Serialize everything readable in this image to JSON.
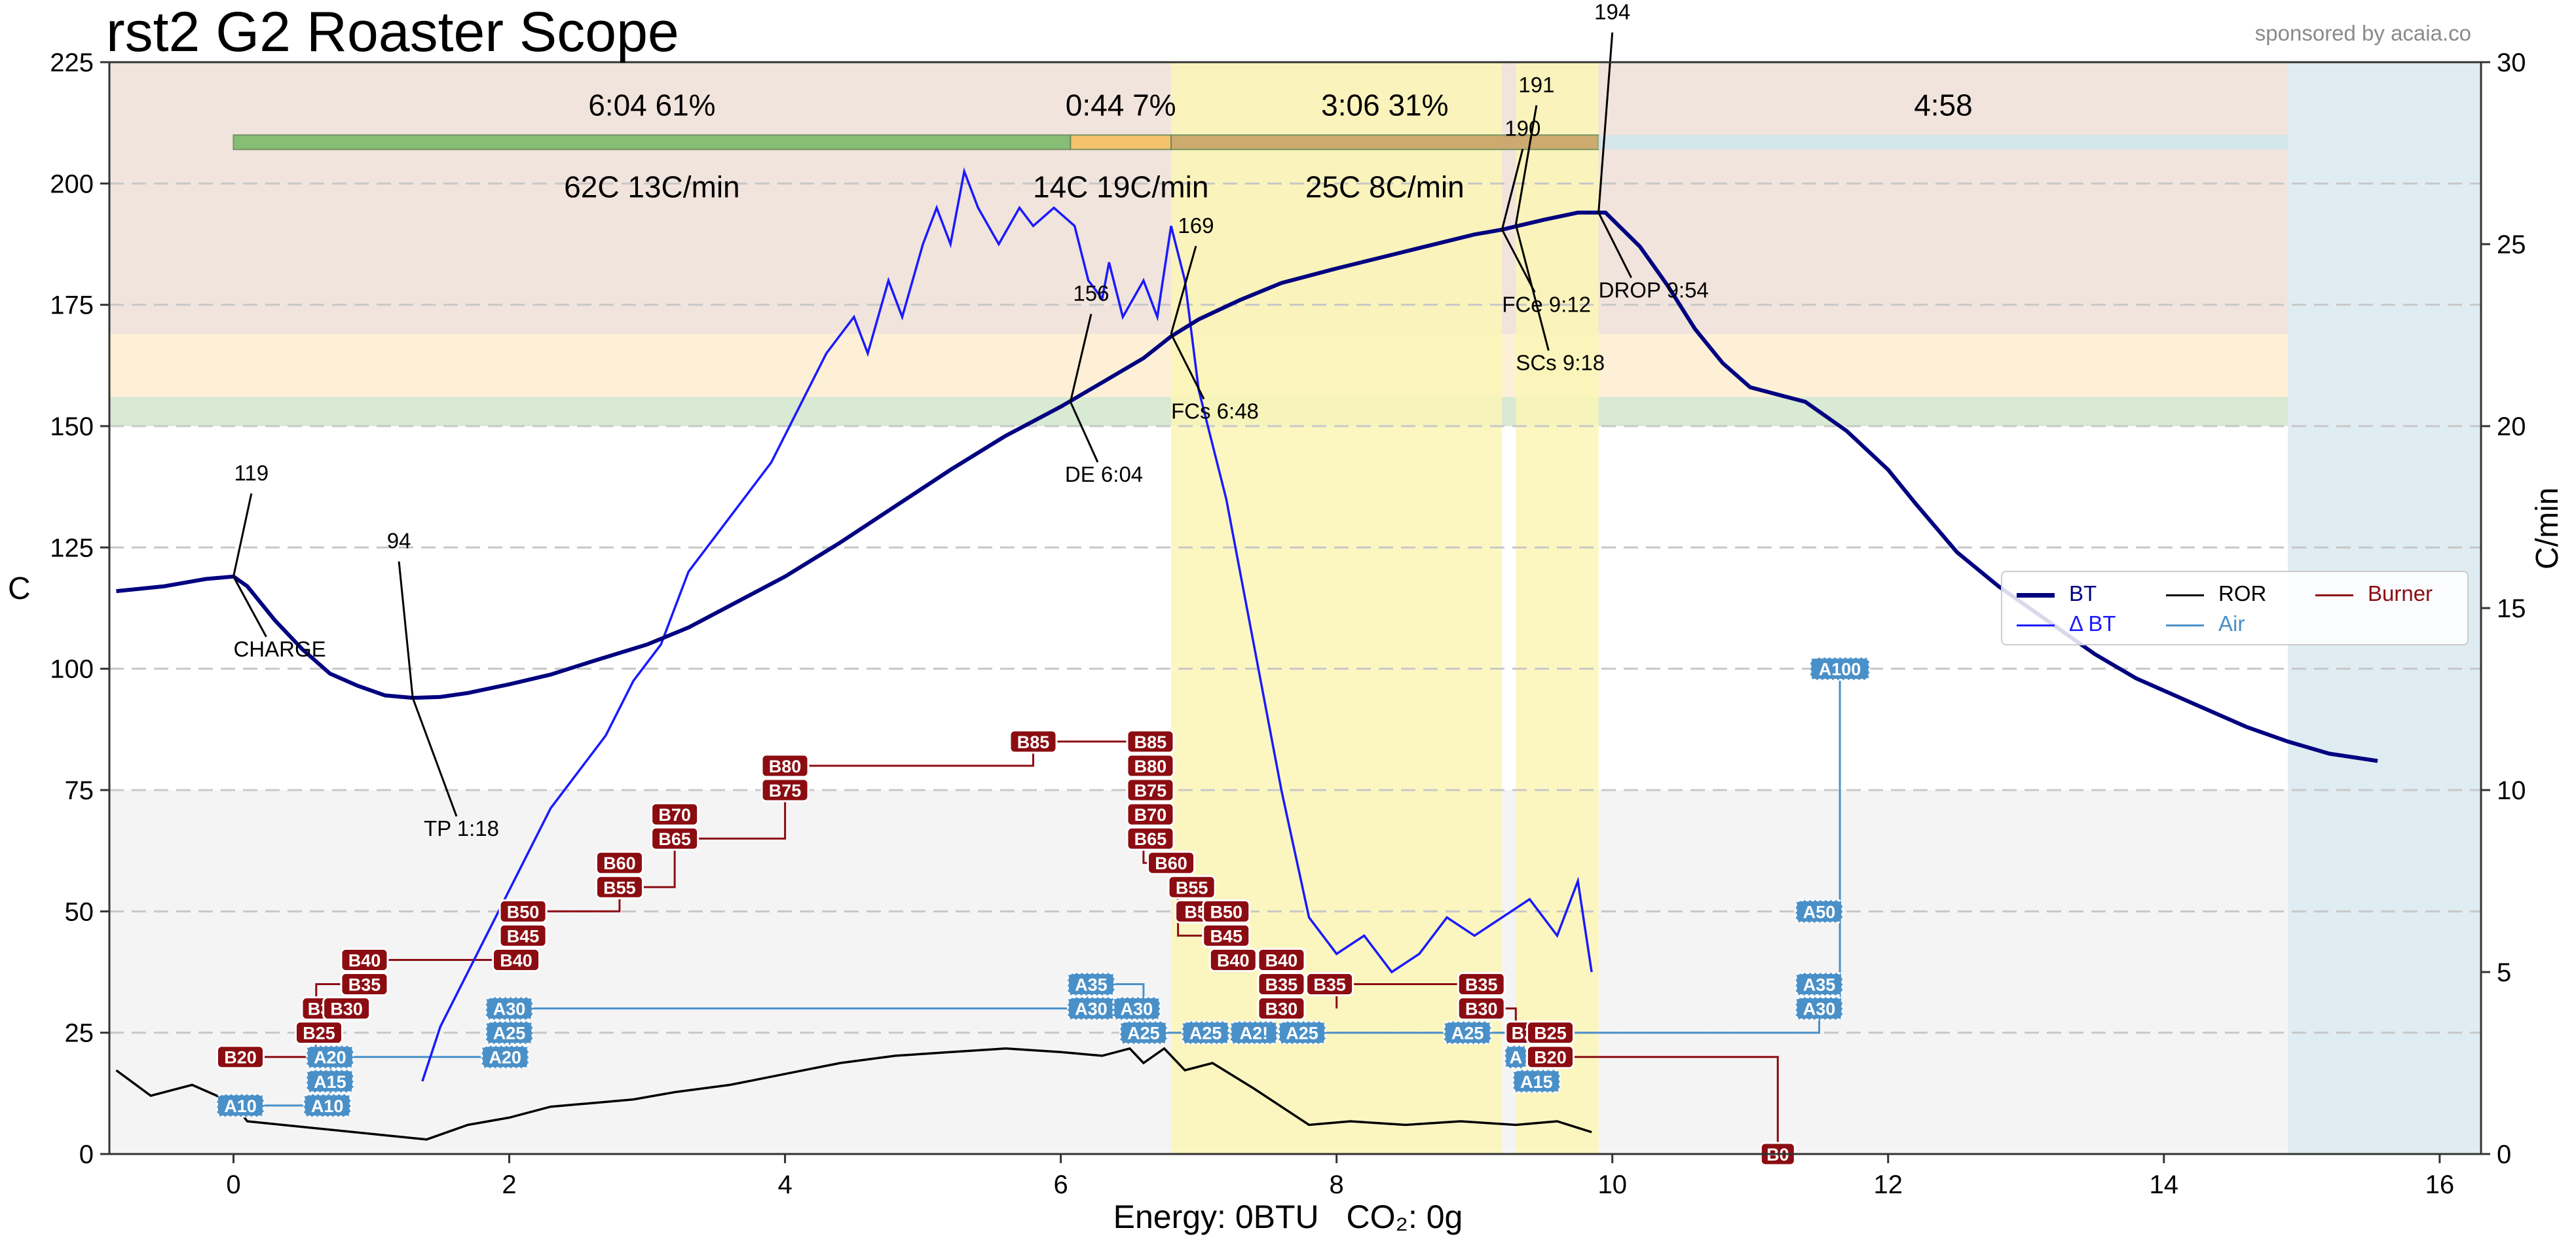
{
  "title": "rst2 G2 Roaster Scope",
  "sponsor": "sponsored by acaia.co",
  "footer": {
    "energy": "Energy: 0BTU",
    "co2": "CO₂: 0g"
  },
  "chart_data": {
    "type": "line",
    "xlim": [
      -0.9,
      16.3
    ],
    "ylim_left": [
      0,
      225
    ],
    "ylim_right": [
      0,
      30
    ],
    "ylabel_left": "C",
    "ylabel_right": "C/min",
    "x_ticks": [
      0,
      2,
      4,
      6,
      8,
      10,
      12,
      14,
      16
    ],
    "y_ticks_left": [
      0,
      25,
      50,
      75,
      100,
      125,
      150,
      175,
      200,
      225
    ],
    "y_ticks_right": [
      0,
      5,
      10,
      15,
      20,
      25,
      30
    ],
    "grid": "horizontal dashed",
    "legend": {
      "placement": "right",
      "entries": [
        {
          "label": "BT",
          "color": "#000080"
        },
        {
          "label": "ROR",
          "color": "#000000"
        },
        {
          "label": "Burner",
          "color": "#8b0d12"
        },
        {
          "label": "Δ BT",
          "color": "#1a1aff"
        },
        {
          "label": "Air",
          "color": "#4a90c8"
        }
      ]
    },
    "temp_bands": [
      {
        "from": 169,
        "to": 225,
        "color": "#f1e4dc"
      },
      {
        "from": 156,
        "to": 169,
        "color": "#fdf0d6"
      },
      {
        "from": 150,
        "to": 156,
        "color": "#d8e9d4"
      }
    ],
    "stripe_bands": [
      [
        0,
        10
      ],
      [
        20,
        30
      ],
      [
        40,
        50
      ],
      [
        60,
        70
      ],
      [
        80,
        90
      ]
    ],
    "phase_regions": [
      {
        "from": 6.8,
        "to": 9.2,
        "color": "#fbf6b6"
      },
      {
        "from": 9.3,
        "to": 9.9,
        "color": "#fbf6b6"
      }
    ],
    "post_region": {
      "from": 14.9,
      "to": 16.3,
      "color": "#dbeaf1"
    },
    "phase_bar": {
      "y": 208.5,
      "segments": [
        {
          "from": 0,
          "to": 6.07,
          "color": "#7cba6c",
          "time": "6:04",
          "pct": "61%",
          "delta": "62C",
          "rate": "13C/min"
        },
        {
          "from": 6.07,
          "to": 6.8,
          "color": "#f5c060",
          "time": "0:44",
          "pct": "7%",
          "delta": "14C",
          "rate": "19C/min"
        },
        {
          "from": 6.8,
          "to": 9.9,
          "color": "#c9a366",
          "time": "3:06",
          "pct": "31%",
          "delta": "25C",
          "rate": "8C/min"
        },
        {
          "from": 9.9,
          "to": 14.9,
          "color": "#cfe5ea",
          "time": "4:58",
          "pct": "",
          "delta": "",
          "rate": ""
        }
      ]
    },
    "bt": [
      [
        -0.85,
        116
      ],
      [
        -0.5,
        117
      ],
      [
        -0.2,
        118.5
      ],
      [
        0.0,
        119
      ],
      [
        0.1,
        117
      ],
      [
        0.3,
        110
      ],
      [
        0.5,
        104
      ],
      [
        0.7,
        99
      ],
      [
        0.9,
        96.5
      ],
      [
        1.1,
        94.5
      ],
      [
        1.3,
        94
      ],
      [
        1.5,
        94.2
      ],
      [
        1.7,
        95
      ],
      [
        2.0,
        96.8
      ],
      [
        2.3,
        98.8
      ],
      [
        2.6,
        101.5
      ],
      [
        3.0,
        105
      ],
      [
        3.3,
        108.5
      ],
      [
        3.6,
        113
      ],
      [
        4.0,
        119
      ],
      [
        4.4,
        126
      ],
      [
        4.8,
        133.5
      ],
      [
        5.2,
        141
      ],
      [
        5.6,
        148
      ],
      [
        6.0,
        154
      ],
      [
        6.3,
        159
      ],
      [
        6.6,
        164
      ],
      [
        6.8,
        168.5
      ],
      [
        7.0,
        172
      ],
      [
        7.3,
        176
      ],
      [
        7.6,
        179.5
      ],
      [
        8.0,
        182.5
      ],
      [
        8.5,
        186
      ],
      [
        9.0,
        189.5
      ],
      [
        9.2,
        190.5
      ],
      [
        9.5,
        192.5
      ],
      [
        9.75,
        194
      ],
      [
        9.95,
        194
      ],
      [
        10.2,
        187
      ],
      [
        10.4,
        179
      ],
      [
        10.6,
        170
      ],
      [
        10.8,
        163
      ],
      [
        11.0,
        158
      ],
      [
        11.2,
        156.5
      ],
      [
        11.4,
        155
      ],
      [
        11.7,
        149
      ],
      [
        12.0,
        141
      ],
      [
        12.2,
        134
      ],
      [
        12.5,
        124
      ],
      [
        12.8,
        117
      ],
      [
        13.1,
        111
      ],
      [
        13.5,
        103
      ],
      [
        13.8,
        98
      ],
      [
        14.2,
        93
      ],
      [
        14.6,
        88
      ],
      [
        14.9,
        85
      ],
      [
        15.2,
        82.5
      ],
      [
        15.55,
        81
      ]
    ],
    "delta_bt": [
      [
        1.37,
        2
      ],
      [
        1.5,
        3.5
      ],
      [
        1.7,
        5
      ],
      [
        1.9,
        6.5
      ],
      [
        2.1,
        8
      ],
      [
        2.3,
        9.5
      ],
      [
        2.5,
        10.5
      ],
      [
        2.7,
        11.5
      ],
      [
        2.9,
        13
      ],
      [
        3.1,
        14
      ],
      [
        3.3,
        16
      ],
      [
        3.5,
        17
      ],
      [
        3.7,
        18
      ],
      [
        3.9,
        19
      ],
      [
        4.1,
        20.5
      ],
      [
        4.3,
        22
      ],
      [
        4.5,
        23
      ],
      [
        4.6,
        22
      ],
      [
        4.75,
        24
      ],
      [
        4.85,
        23
      ],
      [
        5.0,
        25
      ],
      [
        5.1,
        26
      ],
      [
        5.2,
        25
      ],
      [
        5.3,
        27
      ],
      [
        5.4,
        26
      ],
      [
        5.55,
        25
      ],
      [
        5.7,
        26
      ],
      [
        5.8,
        25.5
      ],
      [
        5.95,
        26
      ],
      [
        6.1,
        25.5
      ],
      [
        6.2,
        24
      ],
      [
        6.3,
        23.5
      ],
      [
        6.35,
        24.5
      ],
      [
        6.45,
        23
      ],
      [
        6.6,
        24
      ],
      [
        6.7,
        23
      ],
      [
        6.8,
        25.5
      ],
      [
        6.9,
        24
      ],
      [
        7.0,
        21
      ],
      [
        7.2,
        18
      ],
      [
        7.4,
        14
      ],
      [
        7.6,
        10
      ],
      [
        7.8,
        6.5
      ],
      [
        8.0,
        5.5
      ],
      [
        8.2,
        6
      ],
      [
        8.4,
        5
      ],
      [
        8.6,
        5.5
      ],
      [
        8.8,
        6.5
      ],
      [
        9.0,
        6
      ],
      [
        9.2,
        6.5
      ],
      [
        9.4,
        7
      ],
      [
        9.6,
        6
      ],
      [
        9.75,
        7.5
      ],
      [
        9.85,
        5
      ]
    ],
    "ror": [
      [
        -0.85,
        2.3
      ],
      [
        -0.6,
        1.6
      ],
      [
        -0.3,
        1.9
      ],
      [
        0.0,
        1.4
      ],
      [
        0.1,
        0.9
      ],
      [
        1.4,
        0.4
      ],
      [
        1.7,
        0.8
      ],
      [
        2.0,
        1.0
      ],
      [
        2.3,
        1.3
      ],
      [
        2.6,
        1.4
      ],
      [
        2.9,
        1.5
      ],
      [
        3.2,
        1.7
      ],
      [
        3.6,
        1.9
      ],
      [
        4.0,
        2.2
      ],
      [
        4.4,
        2.5
      ],
      [
        4.8,
        2.7
      ],
      [
        5.2,
        2.8
      ],
      [
        5.6,
        2.9
      ],
      [
        6.0,
        2.8
      ],
      [
        6.3,
        2.7
      ],
      [
        6.5,
        2.9
      ],
      [
        6.6,
        2.5
      ],
      [
        6.75,
        2.9
      ],
      [
        6.9,
        2.3
      ],
      [
        7.1,
        2.5
      ],
      [
        7.4,
        1.8
      ],
      [
        7.6,
        1.3
      ],
      [
        7.8,
        0.8
      ],
      [
        8.1,
        0.9
      ],
      [
        8.5,
        0.8
      ],
      [
        8.9,
        0.9
      ],
      [
        9.3,
        0.8
      ],
      [
        9.6,
        0.9
      ],
      [
        9.85,
        0.6
      ]
    ],
    "burner": [
      [
        0,
        20
      ],
      [
        0.6,
        20
      ],
      [
        0.6,
        35
      ],
      [
        0.9,
        35
      ],
      [
        0.9,
        40
      ],
      [
        2.1,
        40
      ],
      [
        2.1,
        50
      ],
      [
        2.8,
        50
      ],
      [
        2.8,
        55
      ],
      [
        3.2,
        55
      ],
      [
        3.2,
        65
      ],
      [
        4.0,
        65
      ],
      [
        4.0,
        80
      ],
      [
        5.8,
        80
      ],
      [
        5.8,
        85
      ],
      [
        6.6,
        85
      ],
      [
        6.6,
        60
      ],
      [
        6.85,
        60
      ],
      [
        6.85,
        45
      ],
      [
        7.2,
        45
      ],
      [
        7.2,
        40
      ],
      [
        7.6,
        40
      ],
      [
        7.6,
        35
      ],
      [
        8.0,
        35
      ],
      [
        8.0,
        30
      ],
      [
        8.0,
        35
      ],
      [
        9.0,
        35
      ],
      [
        9.0,
        30
      ],
      [
        9.3,
        30
      ],
      [
        9.3,
        20
      ],
      [
        11.2,
        20
      ],
      [
        11.2,
        0
      ]
    ],
    "air": [
      [
        0.05,
        10
      ],
      [
        0.7,
        10
      ],
      [
        0.7,
        20
      ],
      [
        2.0,
        20
      ],
      [
        2.0,
        30
      ],
      [
        6.2,
        30
      ],
      [
        6.2,
        35
      ],
      [
        6.6,
        35
      ],
      [
        6.6,
        25
      ],
      [
        11.5,
        25
      ],
      [
        11.5,
        30
      ],
      [
        11.65,
        30
      ],
      [
        11.65,
        100
      ]
    ],
    "burner_labels": [
      {
        "x": 0.05,
        "y": 20,
        "text": "B20"
      },
      {
        "x": 0.62,
        "y": 25,
        "text": "B25"
      },
      {
        "x": 0.62,
        "y": 30,
        "text": "B3"
      },
      {
        "x": 0.82,
        "y": 30,
        "text": "B30"
      },
      {
        "x": 0.95,
        "y": 35,
        "text": "B35"
      },
      {
        "x": 0.95,
        "y": 40,
        "text": "B40"
      },
      {
        "x": 2.05,
        "y": 40,
        "text": "B40"
      },
      {
        "x": 2.1,
        "y": 45,
        "text": "B45"
      },
      {
        "x": 2.1,
        "y": 50,
        "text": "B50"
      },
      {
        "x": 2.8,
        "y": 55,
        "text": "B55"
      },
      {
        "x": 2.8,
        "y": 60,
        "text": "B60"
      },
      {
        "x": 3.2,
        "y": 65,
        "text": "B65"
      },
      {
        "x": 3.2,
        "y": 70,
        "text": "B70"
      },
      {
        "x": 4.0,
        "y": 75,
        "text": "B75"
      },
      {
        "x": 4.0,
        "y": 80,
        "text": "B80"
      },
      {
        "x": 5.8,
        "y": 85,
        "text": "B85"
      },
      {
        "x": 6.65,
        "y": 85,
        "text": "B85"
      },
      {
        "x": 6.65,
        "y": 80,
        "text": "B80"
      },
      {
        "x": 6.65,
        "y": 75,
        "text": "B75"
      },
      {
        "x": 6.65,
        "y": 70,
        "text": "B70"
      },
      {
        "x": 6.65,
        "y": 65,
        "text": "B65"
      },
      {
        "x": 6.8,
        "y": 60,
        "text": "B60"
      },
      {
        "x": 6.95,
        "y": 55,
        "text": "B55"
      },
      {
        "x": 7.0,
        "y": 50,
        "text": "B5("
      },
      {
        "x": 7.2,
        "y": 50,
        "text": "B50"
      },
      {
        "x": 7.2,
        "y": 45,
        "text": "B45"
      },
      {
        "x": 7.25,
        "y": 40,
        "text": "B40"
      },
      {
        "x": 7.6,
        "y": 40,
        "text": "B40"
      },
      {
        "x": 7.6,
        "y": 35,
        "text": "B35"
      },
      {
        "x": 7.6,
        "y": 30,
        "text": "B30"
      },
      {
        "x": 7.95,
        "y": 35,
        "text": "B35"
      },
      {
        "x": 9.05,
        "y": 35,
        "text": "B35"
      },
      {
        "x": 9.05,
        "y": 30,
        "text": "B30"
      },
      {
        "x": 9.35,
        "y": 25,
        "text": "B2"
      },
      {
        "x": 9.55,
        "y": 25,
        "text": "B25"
      },
      {
        "x": 9.55,
        "y": 20,
        "text": "B20"
      },
      {
        "x": 11.2,
        "y": 0,
        "text": "B0"
      }
    ],
    "air_labels": [
      {
        "x": 0.05,
        "y": 10,
        "text": "A10"
      },
      {
        "x": 0.68,
        "y": 10,
        "text": "A10"
      },
      {
        "x": 0.7,
        "y": 15,
        "text": "A15"
      },
      {
        "x": 0.7,
        "y": 20,
        "text": "A20"
      },
      {
        "x": 1.97,
        "y": 20,
        "text": "A20"
      },
      {
        "x": 2.0,
        "y": 25,
        "text": "A25"
      },
      {
        "x": 2.0,
        "y": 30,
        "text": "A30"
      },
      {
        "x": 6.22,
        "y": 30,
        "text": "A30"
      },
      {
        "x": 6.22,
        "y": 35,
        "text": "A35"
      },
      {
        "x": 6.55,
        "y": 30,
        "text": "A30"
      },
      {
        "x": 6.6,
        "y": 25,
        "text": "A25"
      },
      {
        "x": 7.05,
        "y": 25,
        "text": "A25"
      },
      {
        "x": 7.4,
        "y": 25,
        "text": "A2!"
      },
      {
        "x": 7.6,
        "y": 30,
        "text": "A3("
      },
      {
        "x": 7.75,
        "y": 25,
        "text": "A25"
      },
      {
        "x": 8.95,
        "y": 25,
        "text": "A25"
      },
      {
        "x": 9.3,
        "y": 20,
        "text": "A"
      },
      {
        "x": 9.45,
        "y": 15,
        "text": "A15"
      },
      {
        "x": 11.5,
        "y": 30,
        "text": "A30"
      },
      {
        "x": 11.5,
        "y": 35,
        "text": "A35"
      },
      {
        "x": 11.5,
        "y": 50,
        "text": "A50"
      },
      {
        "x": 11.65,
        "y": 100,
        "text": "A100"
      }
    ],
    "events": [
      {
        "label": "CHARGE",
        "value": "119",
        "x": 0.0,
        "y": 119,
        "lx": 0.0,
        "ly": 102,
        "vx": 0.13,
        "vy": 138
      },
      {
        "label": "TP 1:18",
        "value": "94",
        "x": 1.3,
        "y": 94,
        "lx": 1.38,
        "ly": 65,
        "vx": 1.2,
        "vy": 124
      },
      {
        "label": "DE 6:04",
        "value": "156",
        "x": 6.07,
        "y": 155,
        "lx": 6.03,
        "ly": 138,
        "vx": 6.22,
        "vy": 175
      },
      {
        "label": "FCs 6:48",
        "value": "169",
        "x": 6.8,
        "y": 169,
        "lx": 6.8,
        "ly": 151,
        "vx": 6.98,
        "vy": 189
      },
      {
        "label": "FCe 9:12",
        "value": "190",
        "x": 9.2,
        "y": 190.5,
        "lx": 9.2,
        "ly": 173,
        "vx": 9.35,
        "vy": 209
      },
      {
        "label": "SCs 9:18",
        "value": "191",
        "x": 9.3,
        "y": 191.5,
        "lx": 9.3,
        "ly": 161,
        "vx": 9.45,
        "vy": 218
      },
      {
        "label": "DROP 9:54",
        "value": "194",
        "x": 9.9,
        "y": 194,
        "lx": 9.9,
        "ly": 176,
        "vx": 10.0,
        "vy": 233
      }
    ]
  }
}
